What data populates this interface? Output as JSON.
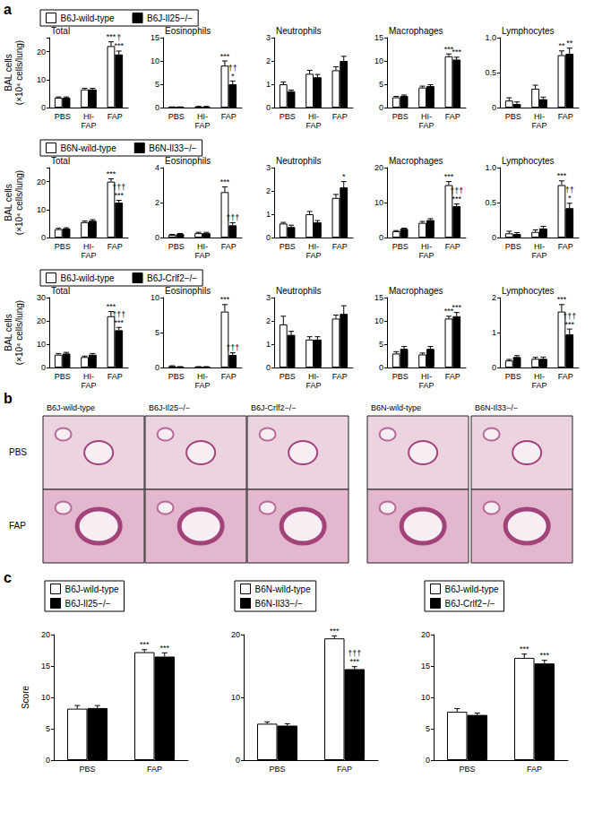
{
  "panel_labels": [
    "a",
    "b",
    "c"
  ],
  "histology": {
    "columns": [
      "B6J-wild-type",
      "B6J-Il25−/−",
      "B6J-Crlf2−/−",
      "B6N-wild-type",
      "B6N-Il33−/−"
    ],
    "rows": [
      "PBS",
      "FAP"
    ]
  },
  "chart_data": [
    {
      "type": "bar",
      "title": "Total",
      "ylabel": "BAL cells\n(×10⁴ cells/lung)",
      "legend": "top-left",
      "grid": false,
      "categories": [
        "PBS",
        "HI-\nFAP",
        "FAP"
      ],
      "ylim": [
        0,
        25
      ],
      "yticks": [
        0,
        10,
        20
      ],
      "series": [
        {
          "name": "B6J-wild-type",
          "color": "#ffffff",
          "values": [
            3.5,
            6.5,
            22
          ],
          "errors": [
            0.3,
            0.4,
            1.5
          ],
          "annotations": [
            null,
            null,
            "***"
          ]
        },
        {
          "name": "B6J-Il25−/−",
          "color": "#000000",
          "values": [
            3.5,
            6.5,
            19
          ],
          "errors": [
            0.3,
            0.4,
            1.2
          ],
          "annotations": [
            null,
            null,
            "†\n***"
          ]
        }
      ]
    },
    {
      "type": "bar",
      "title": "Eosinophils",
      "grid": false,
      "categories": [
        "PBS",
        "HI-\nFAP",
        "FAP"
      ],
      "ylim": [
        0,
        15
      ],
      "yticks": [
        0,
        5,
        10,
        15
      ],
      "series": [
        {
          "name": "B6J-wild-type",
          "color": "#ffffff",
          "values": [
            0.1,
            0.2,
            9
          ],
          "errors": [
            0.05,
            0.05,
            1.0
          ],
          "annotations": [
            null,
            null,
            "***"
          ]
        },
        {
          "name": "B6J-Il25−/−",
          "color": "#000000",
          "values": [
            0.1,
            0.2,
            5
          ],
          "errors": [
            0.05,
            0.05,
            0.7
          ],
          "annotations": [
            null,
            null,
            "††\n*"
          ]
        }
      ]
    },
    {
      "type": "bar",
      "title": "Neutrophils",
      "grid": false,
      "categories": [
        "PBS",
        "HI-\nFAP",
        "FAP"
      ],
      "ylim": [
        0,
        3
      ],
      "yticks": [
        0,
        1,
        2,
        3
      ],
      "series": [
        {
          "name": "B6J-wild-type",
          "color": "#ffffff",
          "values": [
            1.0,
            1.45,
            1.6
          ],
          "errors": [
            0.1,
            0.15,
            0.15
          ],
          "annotations": [
            null,
            null,
            null
          ]
        },
        {
          "name": "B6J-Il25−/−",
          "color": "#000000",
          "values": [
            0.7,
            1.3,
            2.0
          ],
          "errors": [
            0.05,
            0.12,
            0.2
          ],
          "annotations": [
            null,
            null,
            null
          ]
        }
      ]
    },
    {
      "type": "bar",
      "title": "Macrophages",
      "grid": false,
      "categories": [
        "PBS",
        "HI-\nFAP",
        "FAP"
      ],
      "ylim": [
        0,
        15
      ],
      "yticks": [
        0,
        5,
        10,
        15
      ],
      "series": [
        {
          "name": "B6J-wild-type",
          "color": "#ffffff",
          "values": [
            2.2,
            4.3,
            11
          ],
          "errors": [
            0.2,
            0.3,
            0.5
          ],
          "annotations": [
            null,
            null,
            "***"
          ]
        },
        {
          "name": "B6J-Il25−/−",
          "color": "#000000",
          "values": [
            2.5,
            4.6,
            10.3
          ],
          "errors": [
            0.2,
            0.3,
            0.5
          ],
          "annotations": [
            null,
            null,
            "***"
          ]
        }
      ]
    },
    {
      "type": "bar",
      "title": "Lymphocytes",
      "grid": false,
      "categories": [
        "PBS",
        "HI-\nFAP",
        "FAP"
      ],
      "ylim": [
        0,
        1
      ],
      "yticks": [
        0,
        0.5,
        {
          "value": 1,
          "label": "1.0"
        }
      ],
      "series": [
        {
          "name": "B6J-wild-type",
          "color": "#ffffff",
          "values": [
            0.1,
            0.27,
            0.75
          ],
          "errors": [
            0.04,
            0.05,
            0.06
          ],
          "annotations": [
            null,
            null,
            "**"
          ]
        },
        {
          "name": "B6J-Il25−/−",
          "color": "#000000",
          "values": [
            0.05,
            0.12,
            0.77
          ],
          "errors": [
            0.03,
            0.03,
            0.08
          ],
          "annotations": [
            null,
            null,
            "**"
          ]
        }
      ]
    },
    {
      "type": "bar",
      "title": "Total",
      "ylabel": "BAL cells\n(×10⁴ cells/lung)",
      "legend": "top-left",
      "grid": false,
      "categories": [
        "PBS",
        "HI-\nFAP",
        "FAP"
      ],
      "ylim": [
        0,
        25
      ],
      "yticks": [
        0,
        10,
        20
      ],
      "series": [
        {
          "name": "B6N-wild-type",
          "color": "#ffffff",
          "values": [
            3,
            5.5,
            20
          ],
          "errors": [
            0.3,
            0.4,
            1.0
          ],
          "annotations": [
            null,
            null,
            "***"
          ]
        },
        {
          "name": "B6N-Il33−/−",
          "color": "#000000",
          "values": [
            3.2,
            6,
            12.5
          ],
          "errors": [
            0.3,
            0.4,
            0.8
          ],
          "annotations": [
            null,
            null,
            "†††\n***"
          ]
        }
      ]
    },
    {
      "type": "bar",
      "title": "Eosinophils",
      "grid": false,
      "categories": [
        "PBS",
        "HI-\nFAP",
        "FAP"
      ],
      "ylim": [
        0,
        4
      ],
      "yticks": [
        0,
        2,
        4
      ],
      "series": [
        {
          "name": "B6N-wild-type",
          "color": "#ffffff",
          "values": [
            0.15,
            0.25,
            2.6
          ],
          "errors": [
            0.03,
            0.05,
            0.3
          ],
          "annotations": [
            null,
            null,
            "***"
          ]
        },
        {
          "name": "B6N-Il33−/−",
          "color": "#000000",
          "values": [
            0.2,
            0.25,
            0.7
          ],
          "errors": [
            0.03,
            0.05,
            0.15
          ],
          "annotations": [
            null,
            null,
            "†††"
          ]
        }
      ]
    },
    {
      "type": "bar",
      "title": "Neutrophils",
      "grid": false,
      "categories": [
        "PBS",
        "HI-\nFAP",
        "FAP"
      ],
      "ylim": [
        0,
        3
      ],
      "yticks": [
        0,
        1,
        2,
        3
      ],
      "series": [
        {
          "name": "B6N-wild-type",
          "color": "#ffffff",
          "values": [
            0.6,
            1.0,
            1.7
          ],
          "errors": [
            0.05,
            0.12,
            0.15
          ],
          "annotations": [
            null,
            null,
            null
          ]
        },
        {
          "name": "B6N-Il33−/−",
          "color": "#000000",
          "values": [
            0.45,
            0.65,
            2.15
          ],
          "errors": [
            0.08,
            0.08,
            0.25
          ],
          "annotations": [
            null,
            null,
            "*"
          ]
        }
      ]
    },
    {
      "type": "bar",
      "title": "Macrophages",
      "grid": false,
      "categories": [
        "PBS",
        "HI-\nFAP",
        "FAP"
      ],
      "ylim": [
        0,
        20
      ],
      "yticks": [
        0,
        10,
        20
      ],
      "series": [
        {
          "name": "B6N-wild-type",
          "color": "#ffffff",
          "values": [
            1.8,
            4.2,
            15
          ],
          "errors": [
            0.2,
            0.4,
            1.0
          ],
          "annotations": [
            null,
            null,
            "***"
          ]
        },
        {
          "name": "B6N-Il33−/−",
          "color": "#000000",
          "values": [
            2.5,
            5,
            9
          ],
          "errors": [
            0.2,
            0.4,
            0.6
          ],
          "annotations": [
            null,
            null,
            "†††\n***"
          ]
        }
      ]
    },
    {
      "type": "bar",
      "title": "Lymphocytes",
      "grid": false,
      "categories": [
        "PBS",
        "HI-\nFAP",
        "FAP"
      ],
      "ylim": [
        0,
        1
      ],
      "yticks": [
        0,
        0.5,
        {
          "value": 1,
          "label": "1.0"
        }
      ],
      "series": [
        {
          "name": "B6N-wild-type",
          "color": "#ffffff",
          "values": [
            0.06,
            0.08,
            0.75
          ],
          "errors": [
            0.03,
            0.03,
            0.06
          ],
          "annotations": [
            null,
            null,
            "***"
          ]
        },
        {
          "name": "B6N-Il33−/−",
          "color": "#000000",
          "values": [
            0.05,
            0.13,
            0.42
          ],
          "errors": [
            0.02,
            0.03,
            0.07
          ],
          "annotations": [
            null,
            null,
            "††\n*"
          ]
        }
      ]
    },
    {
      "type": "bar",
      "title": "Total",
      "ylabel": "BAL cells\n(×10⁴ cells/lung)",
      "legend": "top-left",
      "grid": false,
      "categories": [
        "PBS",
        "HI-\nFAP",
        "FAP"
      ],
      "ylim": [
        0,
        30
      ],
      "yticks": [
        0,
        10,
        20,
        30
      ],
      "series": [
        {
          "name": "B6J-wild-type",
          "color": "#ffffff",
          "values": [
            5.5,
            4.5,
            22
          ],
          "errors": [
            0.5,
            0.4,
            2.0
          ],
          "annotations": [
            null,
            null,
            "***"
          ]
        },
        {
          "name": "B6J-Crlf2−/−",
          "color": "#000000",
          "values": [
            6,
            5.5,
            16
          ],
          "errors": [
            0.5,
            0.5,
            1.2
          ],
          "annotations": [
            null,
            null,
            "†††\n***"
          ]
        }
      ]
    },
    {
      "type": "bar",
      "title": "Eosinophils",
      "grid": false,
      "categories": [
        "PBS",
        "HI-\nFAP",
        "FAP"
      ],
      "ylim": [
        0,
        10
      ],
      "yticks": [
        0,
        5,
        10
      ],
      "series": [
        {
          "name": "B6J-wild-type",
          "color": "#ffffff",
          "values": [
            0.2,
            0.1,
            8
          ],
          "errors": [
            0.05,
            0.03,
            1.0
          ],
          "annotations": [
            null,
            null,
            "***"
          ]
        },
        {
          "name": "B6J-Crlf2−/−",
          "color": "#000000",
          "values": [
            0.1,
            0.1,
            1.8
          ],
          "errors": [
            0.03,
            0.03,
            0.3
          ],
          "annotations": [
            null,
            null,
            "†††"
          ]
        }
      ]
    },
    {
      "type": "bar",
      "title": "Neutrophils",
      "grid": false,
      "categories": [
        "PBS",
        "HI-\nFAP",
        "FAP"
      ],
      "ylim": [
        0,
        3
      ],
      "yticks": [
        0,
        1,
        2,
        3
      ],
      "series": [
        {
          "name": "B6J-wild-type",
          "color": "#ffffff",
          "values": [
            1.85,
            1.2,
            2.1
          ],
          "errors": [
            0.35,
            0.12,
            0.15
          ],
          "annotations": [
            null,
            null,
            null
          ]
        },
        {
          "name": "B6J-Crlf2−/−",
          "color": "#000000",
          "values": [
            1.4,
            1.2,
            2.3
          ],
          "errors": [
            0.15,
            0.12,
            0.35
          ],
          "annotations": [
            null,
            null,
            null
          ]
        }
      ]
    },
    {
      "type": "bar",
      "title": "Macrophages",
      "grid": false,
      "categories": [
        "PBS",
        "HI-\nFAP",
        "FAP"
      ],
      "ylim": [
        0,
        15
      ],
      "yticks": [
        0,
        5,
        10,
        15
      ],
      "series": [
        {
          "name": "B6J-wild-type",
          "color": "#ffffff",
          "values": [
            3,
            2.8,
            10.5
          ],
          "errors": [
            0.4,
            0.3,
            0.5
          ],
          "annotations": [
            null,
            null,
            "***"
          ]
        },
        {
          "name": "B6J-Crlf2−/−",
          "color": "#000000",
          "values": [
            4,
            4,
            11
          ],
          "errors": [
            0.5,
            0.5,
            0.8
          ],
          "annotations": [
            null,
            null,
            "***"
          ]
        }
      ]
    },
    {
      "type": "bar",
      "title": "Lymphocytes",
      "grid": false,
      "categories": [
        "PBS",
        "HI-\nFAP",
        "FAP"
      ],
      "ylim": [
        0,
        2
      ],
      "yticks": [
        0,
        1,
        2
      ],
      "series": [
        {
          "name": "B6J-wild-type",
          "color": "#ffffff",
          "values": [
            0.2,
            0.25,
            1.6
          ],
          "errors": [
            0.03,
            0.04,
            0.2
          ],
          "annotations": [
            null,
            null,
            "***"
          ]
        },
        {
          "name": "B6J-Crlf2−/−",
          "color": "#000000",
          "values": [
            0.3,
            0.25,
            0.95
          ],
          "errors": [
            0.04,
            0.05,
            0.15
          ],
          "annotations": [
            null,
            null,
            "†††\n***"
          ]
        }
      ]
    },
    {
      "type": "bar",
      "ylabel": "Score",
      "legend": "top-left",
      "grid": false,
      "categories": [
        "PBS",
        "FAP"
      ],
      "ylim": [
        0,
        20
      ],
      "yticks": [
        0,
        5,
        10,
        15,
        20
      ],
      "series": [
        {
          "name": "B6J-wild-type",
          "color": "#ffffff",
          "values": [
            8.2,
            17.2
          ],
          "errors": [
            0.5,
            0.4
          ],
          "annotations": [
            null,
            "***"
          ]
        },
        {
          "name": "B6J-Il25−/−",
          "color": "#000000",
          "values": [
            8.3,
            16.5
          ],
          "errors": [
            0.4,
            0.6
          ],
          "annotations": [
            null,
            "***"
          ]
        }
      ]
    },
    {
      "type": "bar",
      "legend": "top-left",
      "grid": false,
      "categories": [
        "PBS",
        "FAP"
      ],
      "ylim": [
        0,
        20
      ],
      "yticks": [
        0,
        10,
        20
      ],
      "series": [
        {
          "name": "B6N-wild-type",
          "color": "#ffffff",
          "values": [
            5.8,
            19.4
          ],
          "errors": [
            0.3,
            0.4
          ],
          "annotations": [
            null,
            "***"
          ]
        },
        {
          "name": "B6N-Il33−/−",
          "color": "#000000",
          "values": [
            5.5,
            14.5
          ],
          "errors": [
            0.3,
            0.4
          ],
          "annotations": [
            null,
            "†††\n***"
          ]
        }
      ]
    },
    {
      "type": "bar",
      "legend": "top-left",
      "grid": false,
      "categories": [
        "PBS",
        "FAP"
      ],
      "ylim": [
        0,
        20
      ],
      "yticks": [
        0,
        5,
        10,
        15,
        20
      ],
      "series": [
        {
          "name": "B6J-wild-type",
          "color": "#ffffff",
          "values": [
            7.7,
            16.3
          ],
          "errors": [
            0.5,
            0.6
          ],
          "annotations": [
            null,
            "***"
          ]
        },
        {
          "name": "B6J-Crlf2−/−",
          "color": "#000000",
          "values": [
            7.2,
            15.4
          ],
          "errors": [
            0.3,
            0.5
          ],
          "annotations": [
            null,
            "***"
          ]
        }
      ]
    }
  ]
}
